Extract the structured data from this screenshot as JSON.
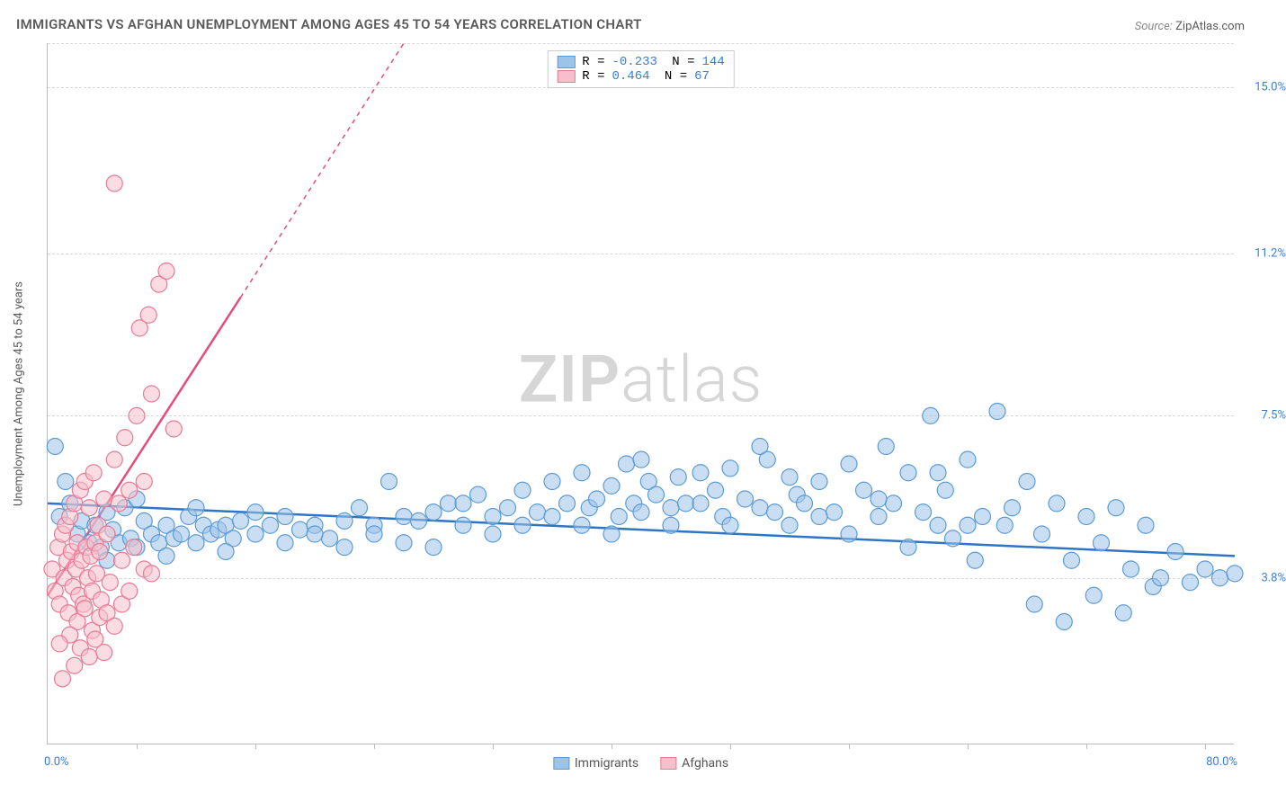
{
  "title": "IMMIGRANTS VS AFGHAN UNEMPLOYMENT AMONG AGES 45 TO 54 YEARS CORRELATION CHART",
  "source_label": "Source:",
  "source_value": "ZipAtlas.com",
  "watermark_a": "ZIP",
  "watermark_b": "atlas",
  "chart": {
    "type": "scatter",
    "xlim": [
      0,
      80
    ],
    "ylim": [
      0,
      16
    ],
    "x_min_label": "0.0%",
    "x_max_label": "80.0%",
    "y_ticks": [
      3.8,
      7.5,
      11.2,
      15.0
    ],
    "y_tick_labels": [
      "3.8%",
      "7.5%",
      "11.2%",
      "15.0%"
    ],
    "x_tick_positions": [
      6,
      14,
      22,
      30,
      38,
      46,
      54,
      62,
      70,
      78
    ],
    "y_axis_title": "Unemployment Among Ages 45 to 54 years",
    "background_color": "#ffffff",
    "grid_color": "#d8d8d8",
    "marker_radius": 9,
    "marker_opacity": 0.55,
    "series": [
      {
        "name": "Immigrants",
        "fill": "#9cc3e8",
        "stroke": "#5b9bd5",
        "line_color": "#2e75c6",
        "line_width": 2.5,
        "R": "-0.233",
        "N": "144",
        "trend": {
          "x1": 0,
          "y1": 5.5,
          "x2": 80,
          "y2": 4.3
        },
        "points": [
          [
            0.5,
            6.8
          ],
          [
            0.8,
            5.2
          ],
          [
            1.2,
            6.0
          ],
          [
            1.5,
            5.5
          ],
          [
            2.0,
            4.8
          ],
          [
            2.3,
            5.1
          ],
          [
            2.8,
            4.6
          ],
          [
            3.2,
            5.0
          ],
          [
            3.6,
            4.5
          ],
          [
            4.0,
            5.3
          ],
          [
            4.4,
            4.9
          ],
          [
            4.8,
            4.6
          ],
          [
            5.2,
            5.4
          ],
          [
            5.6,
            4.7
          ],
          [
            6.0,
            4.5
          ],
          [
            6.5,
            5.1
          ],
          [
            7.0,
            4.8
          ],
          [
            7.5,
            4.6
          ],
          [
            8.0,
            5.0
          ],
          [
            8.5,
            4.7
          ],
          [
            9.0,
            4.8
          ],
          [
            9.5,
            5.2
          ],
          [
            10.0,
            4.6
          ],
          [
            10.5,
            5.0
          ],
          [
            11.0,
            4.8
          ],
          [
            11.5,
            4.9
          ],
          [
            12.0,
            5.0
          ],
          [
            12.5,
            4.7
          ],
          [
            13.0,
            5.1
          ],
          [
            14.0,
            4.8
          ],
          [
            15.0,
            5.0
          ],
          [
            16.0,
            5.2
          ],
          [
            17.0,
            4.9
          ],
          [
            18.0,
            5.0
          ],
          [
            19.0,
            4.7
          ],
          [
            20.0,
            5.1
          ],
          [
            21.0,
            5.4
          ],
          [
            22.0,
            5.0
          ],
          [
            23.0,
            6.0
          ],
          [
            24.0,
            5.2
          ],
          [
            25.0,
            5.1
          ],
          [
            26.0,
            5.3
          ],
          [
            27.0,
            5.5
          ],
          [
            28.0,
            5.0
          ],
          [
            29.0,
            5.7
          ],
          [
            30.0,
            5.2
          ],
          [
            31.0,
            5.4
          ],
          [
            32.0,
            5.8
          ],
          [
            33.0,
            5.3
          ],
          [
            34.0,
            6.0
          ],
          [
            35.0,
            5.5
          ],
          [
            36.0,
            6.2
          ],
          [
            36.5,
            5.4
          ],
          [
            37.0,
            5.6
          ],
          [
            38.0,
            5.9
          ],
          [
            38.5,
            5.2
          ],
          [
            39.0,
            6.4
          ],
          [
            39.5,
            5.5
          ],
          [
            40.0,
            5.3
          ],
          [
            40.5,
            6.0
          ],
          [
            41.0,
            5.7
          ],
          [
            42.0,
            5.4
          ],
          [
            42.5,
            6.1
          ],
          [
            43.0,
            5.5
          ],
          [
            44.0,
            6.2
          ],
          [
            45.0,
            5.8
          ],
          [
            45.5,
            5.2
          ],
          [
            46.0,
            6.3
          ],
          [
            47.0,
            5.6
          ],
          [
            48.0,
            5.4
          ],
          [
            48.5,
            6.5
          ],
          [
            49.0,
            5.3
          ],
          [
            50.0,
            6.1
          ],
          [
            50.5,
            5.7
          ],
          [
            51.0,
            5.5
          ],
          [
            52.0,
            6.0
          ],
          [
            53.0,
            5.3
          ],
          [
            54.0,
            6.4
          ],
          [
            55.0,
            5.8
          ],
          [
            56.0,
            5.2
          ],
          [
            56.5,
            6.8
          ],
          [
            57.0,
            5.5
          ],
          [
            58.0,
            6.2
          ],
          [
            59.0,
            5.3
          ],
          [
            59.5,
            7.5
          ],
          [
            60.0,
            5.0
          ],
          [
            60.5,
            5.8
          ],
          [
            61.0,
            4.7
          ],
          [
            62.0,
            6.5
          ],
          [
            62.5,
            4.2
          ],
          [
            63.0,
            5.2
          ],
          [
            64.0,
            7.6
          ],
          [
            64.5,
            5.0
          ],
          [
            65.0,
            5.4
          ],
          [
            66.0,
            6.0
          ],
          [
            66.5,
            3.2
          ],
          [
            67.0,
            4.8
          ],
          [
            68.0,
            5.5
          ],
          [
            68.5,
            2.8
          ],
          [
            69.0,
            4.2
          ],
          [
            70.0,
            5.2
          ],
          [
            70.5,
            3.4
          ],
          [
            71.0,
            4.6
          ],
          [
            72.0,
            5.4
          ],
          [
            72.5,
            3.0
          ],
          [
            73.0,
            4.0
          ],
          [
            74.0,
            5.0
          ],
          [
            74.5,
            3.6
          ],
          [
            75.0,
            3.8
          ],
          [
            76.0,
            4.4
          ],
          [
            77.0,
            3.7
          ],
          [
            78.0,
            4.0
          ],
          [
            79.0,
            3.8
          ],
          [
            80.0,
            3.9
          ],
          [
            4.0,
            4.2
          ],
          [
            6.0,
            5.6
          ],
          [
            8.0,
            4.3
          ],
          [
            10.0,
            5.4
          ],
          [
            12.0,
            4.4
          ],
          [
            14.0,
            5.3
          ],
          [
            16.0,
            4.6
          ],
          [
            18.0,
            4.8
          ],
          [
            20.0,
            4.5
          ],
          [
            22.0,
            4.8
          ],
          [
            24.0,
            4.6
          ],
          [
            26.0,
            4.5
          ],
          [
            28.0,
            5.5
          ],
          [
            30.0,
            4.8
          ],
          [
            32.0,
            5.0
          ],
          [
            34.0,
            5.2
          ],
          [
            36.0,
            5.0
          ],
          [
            38.0,
            4.8
          ],
          [
            40.0,
            6.5
          ],
          [
            42.0,
            5.0
          ],
          [
            44.0,
            5.5
          ],
          [
            46.0,
            5.0
          ],
          [
            48.0,
            6.8
          ],
          [
            50.0,
            5.0
          ],
          [
            52.0,
            5.2
          ],
          [
            54.0,
            4.8
          ],
          [
            56.0,
            5.6
          ],
          [
            58.0,
            4.5
          ],
          [
            60.0,
            6.2
          ],
          [
            62.0,
            5.0
          ]
        ]
      },
      {
        "name": "Afghans",
        "fill": "#f6c0cb",
        "stroke": "#e87a94",
        "line_color": "#e64c7a",
        "line_width": 2.5,
        "R": "0.464",
        "N": "67",
        "trend": {
          "x1": 0,
          "y1": 3.4,
          "x2": 13,
          "y2": 10.2
        },
        "trend_dash": {
          "x1": 13,
          "y1": 10.2,
          "x2": 24,
          "y2": 16
        },
        "points": [
          [
            0.3,
            4.0
          ],
          [
            0.5,
            3.5
          ],
          [
            0.7,
            4.5
          ],
          [
            0.8,
            3.2
          ],
          [
            1.0,
            4.8
          ],
          [
            1.1,
            3.8
          ],
          [
            1.2,
            5.0
          ],
          [
            1.3,
            4.2
          ],
          [
            1.4,
            3.0
          ],
          [
            1.5,
            5.2
          ],
          [
            1.6,
            4.4
          ],
          [
            1.7,
            3.6
          ],
          [
            1.8,
            5.5
          ],
          [
            1.9,
            4.0
          ],
          [
            2.0,
            4.6
          ],
          [
            2.1,
            3.4
          ],
          [
            2.2,
            5.8
          ],
          [
            2.3,
            4.2
          ],
          [
            2.4,
            3.2
          ],
          [
            2.5,
            6.0
          ],
          [
            2.6,
            4.5
          ],
          [
            2.7,
            3.8
          ],
          [
            2.8,
            5.4
          ],
          [
            2.9,
            4.3
          ],
          [
            3.0,
            3.5
          ],
          [
            3.1,
            6.2
          ],
          [
            3.2,
            4.6
          ],
          [
            3.3,
            3.9
          ],
          [
            3.4,
            5.0
          ],
          [
            3.5,
            4.4
          ],
          [
            3.6,
            3.3
          ],
          [
            3.8,
            5.6
          ],
          [
            4.0,
            4.8
          ],
          [
            4.2,
            3.7
          ],
          [
            4.5,
            6.5
          ],
          [
            4.8,
            5.5
          ],
          [
            5.0,
            4.2
          ],
          [
            5.2,
            7.0
          ],
          [
            5.5,
            5.8
          ],
          [
            5.8,
            4.5
          ],
          [
            6.0,
            7.5
          ],
          [
            6.2,
            9.5
          ],
          [
            6.5,
            6.0
          ],
          [
            6.8,
            9.8
          ],
          [
            7.0,
            8.0
          ],
          [
            7.5,
            10.5
          ],
          [
            8.0,
            10.8
          ],
          [
            8.5,
            7.2
          ],
          [
            2.0,
            2.8
          ],
          [
            2.5,
            3.1
          ],
          [
            3.0,
            2.6
          ],
          [
            3.5,
            2.9
          ],
          [
            4.0,
            3.0
          ],
          [
            4.5,
            2.7
          ],
          [
            5.0,
            3.2
          ],
          [
            1.5,
            2.5
          ],
          [
            1.8,
            1.8
          ],
          [
            2.2,
            2.2
          ],
          [
            4.5,
            12.8
          ],
          [
            0.8,
            2.3
          ],
          [
            1.0,
            1.5
          ],
          [
            3.2,
            2.4
          ],
          [
            3.8,
            2.1
          ],
          [
            2.8,
            2.0
          ],
          [
            5.5,
            3.5
          ],
          [
            6.5,
            4.0
          ],
          [
            7.0,
            3.9
          ]
        ]
      }
    ]
  },
  "bottom_legend": [
    "Immigrants",
    "Afghans"
  ]
}
